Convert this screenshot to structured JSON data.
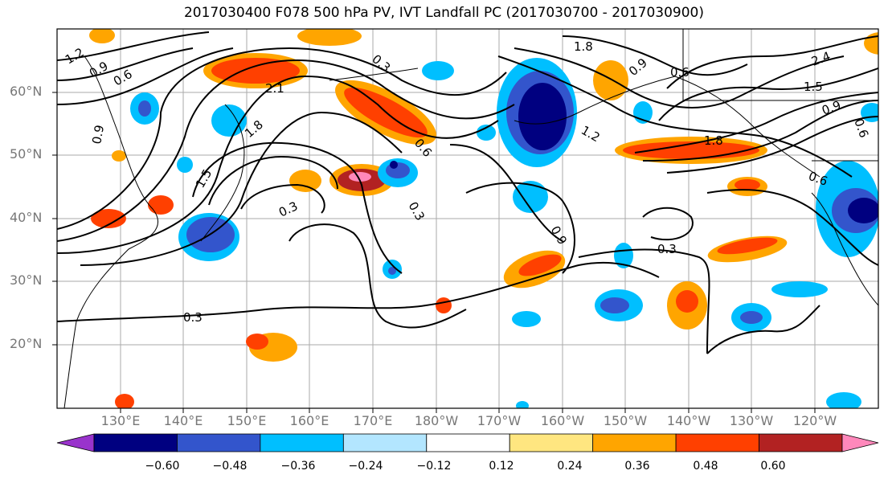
{
  "title": "2017030400 F078 500 hPa PV, IVT Landfall PC (2017030700 - 2017030900)",
  "lat_labels": [
    "60°N",
    "50°N",
    "40°N",
    "30°N",
    "20°N"
  ],
  "lon_labels": [
    "130°E",
    "140°E",
    "150°E",
    "160°E",
    "170°E",
    "180°W",
    "170°W",
    "160°W",
    "150°W",
    "140°W",
    "130°W",
    "120°W"
  ],
  "colorbar": {
    "ticks": [
      "−0.60",
      "−0.48",
      "−0.36",
      "−0.24",
      "−0.12",
      "0.12",
      "0.24",
      "0.36",
      "0.48",
      "0.60"
    ],
    "colors": [
      "#9933cc",
      "#000080",
      "#3355cc",
      "#00bfff",
      "#b3e6ff",
      "#ffffff",
      "#ffe680",
      "#ffa500",
      "#ff4000",
      "#b22222",
      "#ff88bb"
    ]
  },
  "contour_labels": [
    "1.2",
    "0.9",
    "0.6",
    "2.1",
    "1.8",
    "1.5",
    "0.9",
    "0.3",
    "0.3",
    "0.6",
    "0.3",
    "1.8",
    "1.2",
    "0.9",
    "0.6",
    "1.8",
    "1.5",
    "2.4",
    "0.9",
    "0.6",
    "0.6",
    "0.9",
    "0.3",
    "0.3"
  ]
}
